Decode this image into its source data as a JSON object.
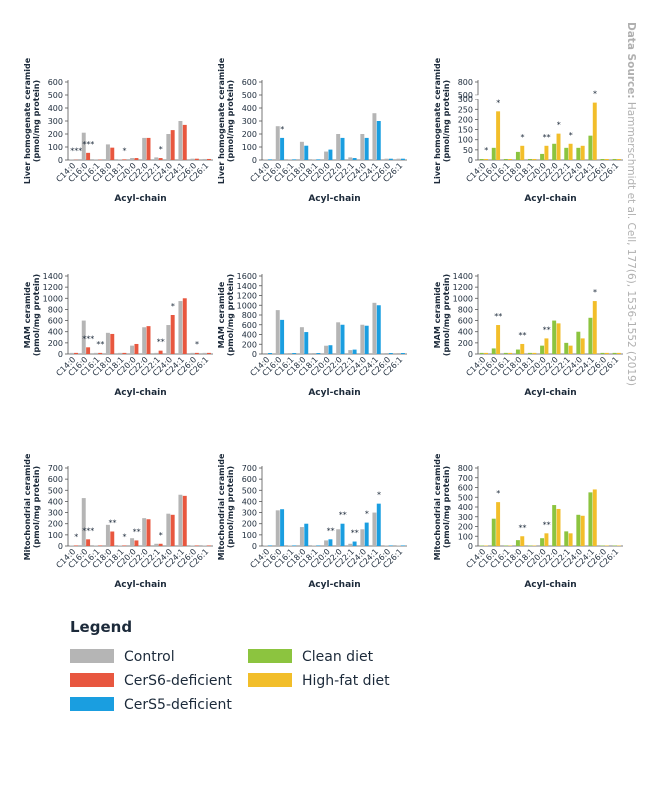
{
  "chart_data": [
    {
      "type": "bar",
      "ylabel": [
        "Liver homogenate ceramide",
        "(pmol/mg protein)"
      ],
      "xlabel": "Acyl-chain",
      "categories": [
        "C14:0",
        "C16:0",
        "C16:1",
        "C18:0",
        "C18:1",
        "C20:0",
        "C22:0",
        "C22:1",
        "C24:0",
        "C24:1",
        "C26:0",
        "C26:1"
      ],
      "ylim": [
        0,
        600
      ],
      "yticks": [
        0,
        100,
        200,
        300,
        400,
        500,
        600
      ],
      "series": [
        {
          "name": "Control",
          "color": "#b5b5b5",
          "values": [
            5,
            210,
            5,
            120,
            5,
            15,
            170,
            20,
            200,
            300,
            10,
            8
          ]
        },
        {
          "name": "CerS6-deficient",
          "color": "#e8573f",
          "values": [
            2,
            55,
            3,
            95,
            5,
            15,
            170,
            15,
            230,
            270,
            10,
            8
          ],
          "significance": [
            "***",
            "***",
            null,
            null,
            "*",
            null,
            null,
            "*",
            null,
            null,
            null,
            null
          ]
        }
      ]
    },
    {
      "type": "bar",
      "ylabel": [
        "Liver homogenate ceramide",
        "(pmol/mg protein)"
      ],
      "xlabel": "Acyl-chain",
      "categories": [
        "C14:0",
        "C16:0",
        "C16:1",
        "C18:0",
        "C18:1",
        "C20:0",
        "C22:0",
        "C22:1",
        "C24:0",
        "C24:1",
        "C26:0",
        "C26:1"
      ],
      "ylim": [
        0,
        600
      ],
      "yticks": [
        0,
        100,
        200,
        300,
        400,
        500,
        600
      ],
      "series": [
        {
          "name": "Control",
          "color": "#b5b5b5",
          "values": [
            5,
            260,
            5,
            140,
            5,
            65,
            200,
            20,
            200,
            360,
            10,
            10
          ]
        },
        {
          "name": "CerS5-deficient",
          "color": "#1a9ee0",
          "values": [
            5,
            170,
            5,
            110,
            5,
            80,
            170,
            15,
            170,
            300,
            10,
            10
          ],
          "significance": [
            null,
            "*",
            null,
            null,
            null,
            null,
            null,
            null,
            null,
            null,
            null,
            null
          ]
        }
      ]
    },
    {
      "type": "bar",
      "ylabel": [
        "Liver homogenate ceramide",
        "(pmol/mg protein)"
      ],
      "xlabel": "Acyl-chain",
      "categories": [
        "C14:0",
        "C16:0",
        "C16:1",
        "C18:0",
        "C18:1",
        "C20:0",
        "C22:0",
        "C22:1",
        "C24:0",
        "C24:1",
        "C26:0",
        "C26:1"
      ],
      "ylim": [
        0,
        800
      ],
      "yticks": [
        0,
        50,
        100,
        150,
        200,
        250,
        300,
        500,
        800
      ],
      "y_break": [
        300,
        500
      ],
      "series": [
        {
          "name": "Clean diet",
          "color": "#8cc43f",
          "values": [
            5,
            60,
            5,
            40,
            5,
            30,
            80,
            60,
            60,
            120,
            5,
            5
          ]
        },
        {
          "name": "High-fat diet",
          "color": "#f2be2a",
          "values": [
            5,
            240,
            5,
            70,
            5,
            70,
            130,
            80,
            70,
            330,
            5,
            5
          ],
          "significance": [
            "*",
            "*",
            null,
            "*",
            null,
            "**",
            "*",
            "*",
            null,
            "*",
            null,
            null
          ]
        }
      ]
    },
    {
      "type": "bar",
      "ylabel": [
        "MAM ceramide",
        "(pmol/mg protein)"
      ],
      "xlabel": "Acyl-chain",
      "categories": [
        "C14:0",
        "C16:0",
        "C16:1",
        "C18:0",
        "C18:1",
        "C20:0",
        "C22:0",
        "C22:1",
        "C24:0",
        "C24:1",
        "C26:0",
        "C26:1"
      ],
      "ylim": [
        0,
        1400
      ],
      "yticks": [
        0,
        200,
        400,
        600,
        800,
        1000,
        1200,
        1400
      ],
      "series": [
        {
          "name": "Control",
          "color": "#b5b5b5",
          "values": [
            20,
            600,
            20,
            380,
            20,
            150,
            480,
            20,
            520,
            950,
            20,
            20
          ]
        },
        {
          "name": "CerS6-deficient",
          "color": "#e8573f",
          "values": [
            20,
            120,
            20,
            360,
            20,
            180,
            500,
            60,
            700,
            1000,
            20,
            20
          ],
          "significance": [
            null,
            "***",
            "**",
            null,
            null,
            null,
            null,
            "**",
            "*",
            null,
            "*",
            null
          ]
        }
      ]
    },
    {
      "type": "bar",
      "ylabel": [
        "MAM ceramide",
        "(pmol/mg protein)"
      ],
      "xlabel": "Acyl-chain",
      "categories": [
        "C14:0",
        "C16:0",
        "C16:1",
        "C18:0",
        "C18:1",
        "C20:0",
        "C22:0",
        "C22:1",
        "C24:0",
        "C24:1",
        "C26:0",
        "C26:1"
      ],
      "ylim": [
        0,
        1600
      ],
      "yticks": [
        0,
        200,
        400,
        600,
        800,
        1000,
        1200,
        1400,
        1600
      ],
      "series": [
        {
          "name": "Control",
          "color": "#b5b5b5",
          "values": [
            20,
            900,
            20,
            550,
            20,
            170,
            650,
            80,
            600,
            1050,
            20,
            20
          ]
        },
        {
          "name": "CerS5-deficient",
          "color": "#1a9ee0",
          "values": [
            20,
            700,
            20,
            450,
            20,
            180,
            600,
            90,
            580,
            1000,
            20,
            20
          ]
        }
      ]
    },
    {
      "type": "bar",
      "ylabel": [
        "MAM ceramide",
        "(pmol/mg protein)"
      ],
      "xlabel": "Acyl-chain",
      "categories": [
        "C14:0",
        "C16:0",
        "C16:1",
        "C18:0",
        "C18:1",
        "C20:0",
        "C22:0",
        "C22:1",
        "C24:0",
        "C24:1",
        "C26:0",
        "C26:1"
      ],
      "ylim": [
        0,
        1400
      ],
      "yticks": [
        0,
        200,
        400,
        600,
        800,
        1000,
        1200,
        1400
      ],
      "series": [
        {
          "name": "Clean diet",
          "color": "#8cc43f",
          "values": [
            20,
            100,
            20,
            80,
            20,
            150,
            600,
            200,
            400,
            650,
            20,
            20
          ]
        },
        {
          "name": "High-fat diet",
          "color": "#f2be2a",
          "values": [
            20,
            520,
            20,
            180,
            20,
            280,
            550,
            150,
            280,
            950,
            20,
            20
          ],
          "significance": [
            null,
            "**",
            null,
            "**",
            null,
            "**",
            null,
            null,
            null,
            "*",
            null,
            null
          ]
        }
      ]
    },
    {
      "type": "bar",
      "ylabel": [
        "Mitochondrial ceramide",
        "(pmol/mg protein)"
      ],
      "xlabel": "Acyl-chain",
      "categories": [
        "C14:0",
        "C16:0",
        "C16:1",
        "C18:0",
        "C18:1",
        "C20:0",
        "C22:0",
        "C22:1",
        "C24:0",
        "C24:1",
        "C26:0",
        "C26:1"
      ],
      "ylim": [
        0,
        700
      ],
      "yticks": [
        0,
        100,
        200,
        300,
        400,
        500,
        600,
        700
      ],
      "series": [
        {
          "name": "Control",
          "color": "#b5b5b5",
          "values": [
            5,
            430,
            5,
            190,
            5,
            70,
            250,
            20,
            290,
            460,
            5,
            5
          ]
        },
        {
          "name": "CerS6-deficient",
          "color": "#e8573f",
          "values": [
            5,
            60,
            5,
            130,
            5,
            50,
            240,
            20,
            280,
            450,
            5,
            5
          ],
          "significance": [
            "*",
            "***",
            null,
            "**",
            "*",
            "**",
            null,
            "*",
            null,
            null,
            null,
            null
          ]
        }
      ]
    },
    {
      "type": "bar",
      "ylabel": [
        "Mitochondrial ceramide",
        "(pmol/mg protein)"
      ],
      "xlabel": "Acyl-chain",
      "categories": [
        "C14:0",
        "C16:0",
        "C16:1",
        "C18:0",
        "C18:1",
        "C20:0",
        "C22:0",
        "C22:1",
        "C24:0",
        "C24:1",
        "C26:0",
        "C26:1"
      ],
      "ylim": [
        0,
        700
      ],
      "yticks": [
        0,
        100,
        200,
        300,
        400,
        500,
        600,
        700
      ],
      "series": [
        {
          "name": "Control",
          "color": "#b5b5b5",
          "values": [
            5,
            320,
            5,
            170,
            5,
            50,
            150,
            20,
            150,
            300,
            5,
            5
          ]
        },
        {
          "name": "CerS5-deficient",
          "color": "#1a9ee0",
          "values": [
            5,
            330,
            5,
            200,
            5,
            60,
            200,
            40,
            210,
            380,
            5,
            5
          ],
          "significance": [
            null,
            null,
            null,
            null,
            null,
            "**",
            "**",
            "**",
            "*",
            "*",
            null,
            null
          ]
        }
      ]
    },
    {
      "type": "bar",
      "ylabel": [
        "Mitochondrial ceramide",
        "(pmol/mg protein)"
      ],
      "xlabel": "Acyl-chain",
      "categories": [
        "C14:0",
        "C16:0",
        "C16:1",
        "C18:0",
        "C18:1",
        "C20:0",
        "C22:0",
        "C22:1",
        "C24:0",
        "C24:1",
        "C26:0",
        "C26:1"
      ],
      "ylim": [
        0,
        800
      ],
      "yticks": [
        0,
        100,
        200,
        300,
        400,
        500,
        600,
        700,
        800
      ],
      "series": [
        {
          "name": "Clean diet",
          "color": "#8cc43f",
          "values": [
            5,
            280,
            5,
            60,
            5,
            80,
            420,
            150,
            320,
            550,
            5,
            5
          ]
        },
        {
          "name": "High-fat diet",
          "color": "#f2be2a",
          "values": [
            5,
            450,
            5,
            100,
            5,
            130,
            380,
            130,
            310,
            580,
            5,
            5
          ],
          "significance": [
            null,
            "*",
            null,
            "**",
            null,
            "**",
            null,
            null,
            null,
            null,
            null,
            null
          ]
        }
      ]
    }
  ],
  "legend_title": "Legend",
  "data_source": {
    "label": "Data Source:",
    "text": "Hammerschmidt et al. Cell, 177(6), 1536-1552 (2019)"
  }
}
